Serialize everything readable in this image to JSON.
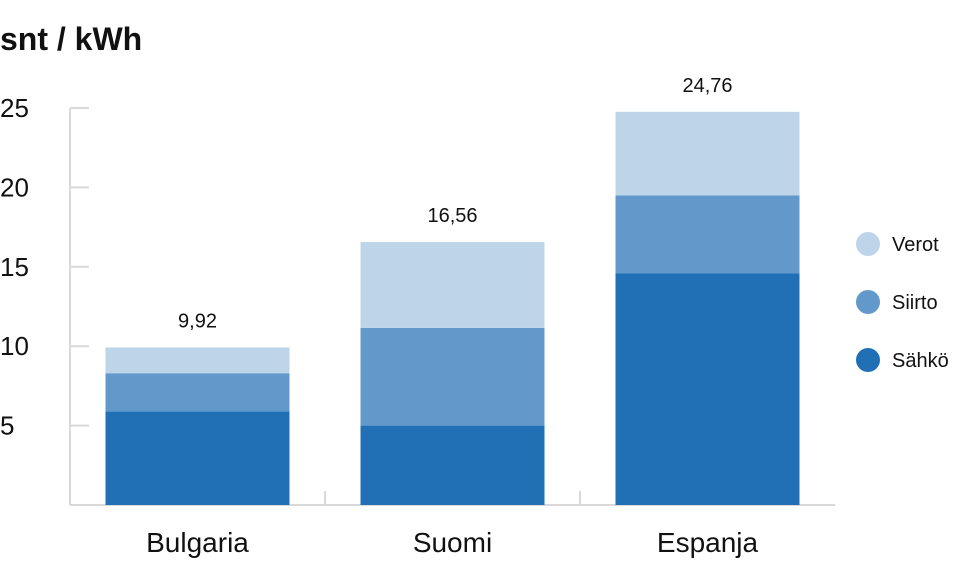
{
  "chart_data": {
    "type": "bar",
    "stacked": true,
    "title": "snt / kWh",
    "xlabel": "",
    "ylabel": "",
    "ylim": [
      0,
      25
    ],
    "yticks": [
      5,
      10,
      15,
      20,
      25
    ],
    "ytick_labels": [
      "5",
      "10",
      "15",
      "20",
      "25"
    ],
    "grid": false,
    "legend_position": "right",
    "categories": [
      "Bulgaria",
      "Suomi",
      "Espanja"
    ],
    "series": [
      {
        "name": "Sähkö",
        "color": "#2170b5",
        "values": [
          5.9,
          5.0,
          14.6
        ]
      },
      {
        "name": "Siirto",
        "color": "#6399ca",
        "values": [
          2.4,
          6.15,
          4.9
        ]
      },
      {
        "name": "Verot",
        "color": "#bdd4e9",
        "values": [
          1.62,
          5.41,
          5.26
        ]
      }
    ],
    "totals": [
      9.92,
      16.56,
      24.76
    ],
    "total_labels": [
      "9,92",
      "16,56",
      "24,76"
    ],
    "legend_order": [
      "Verot",
      "Siirto",
      "Sähkö"
    ]
  }
}
